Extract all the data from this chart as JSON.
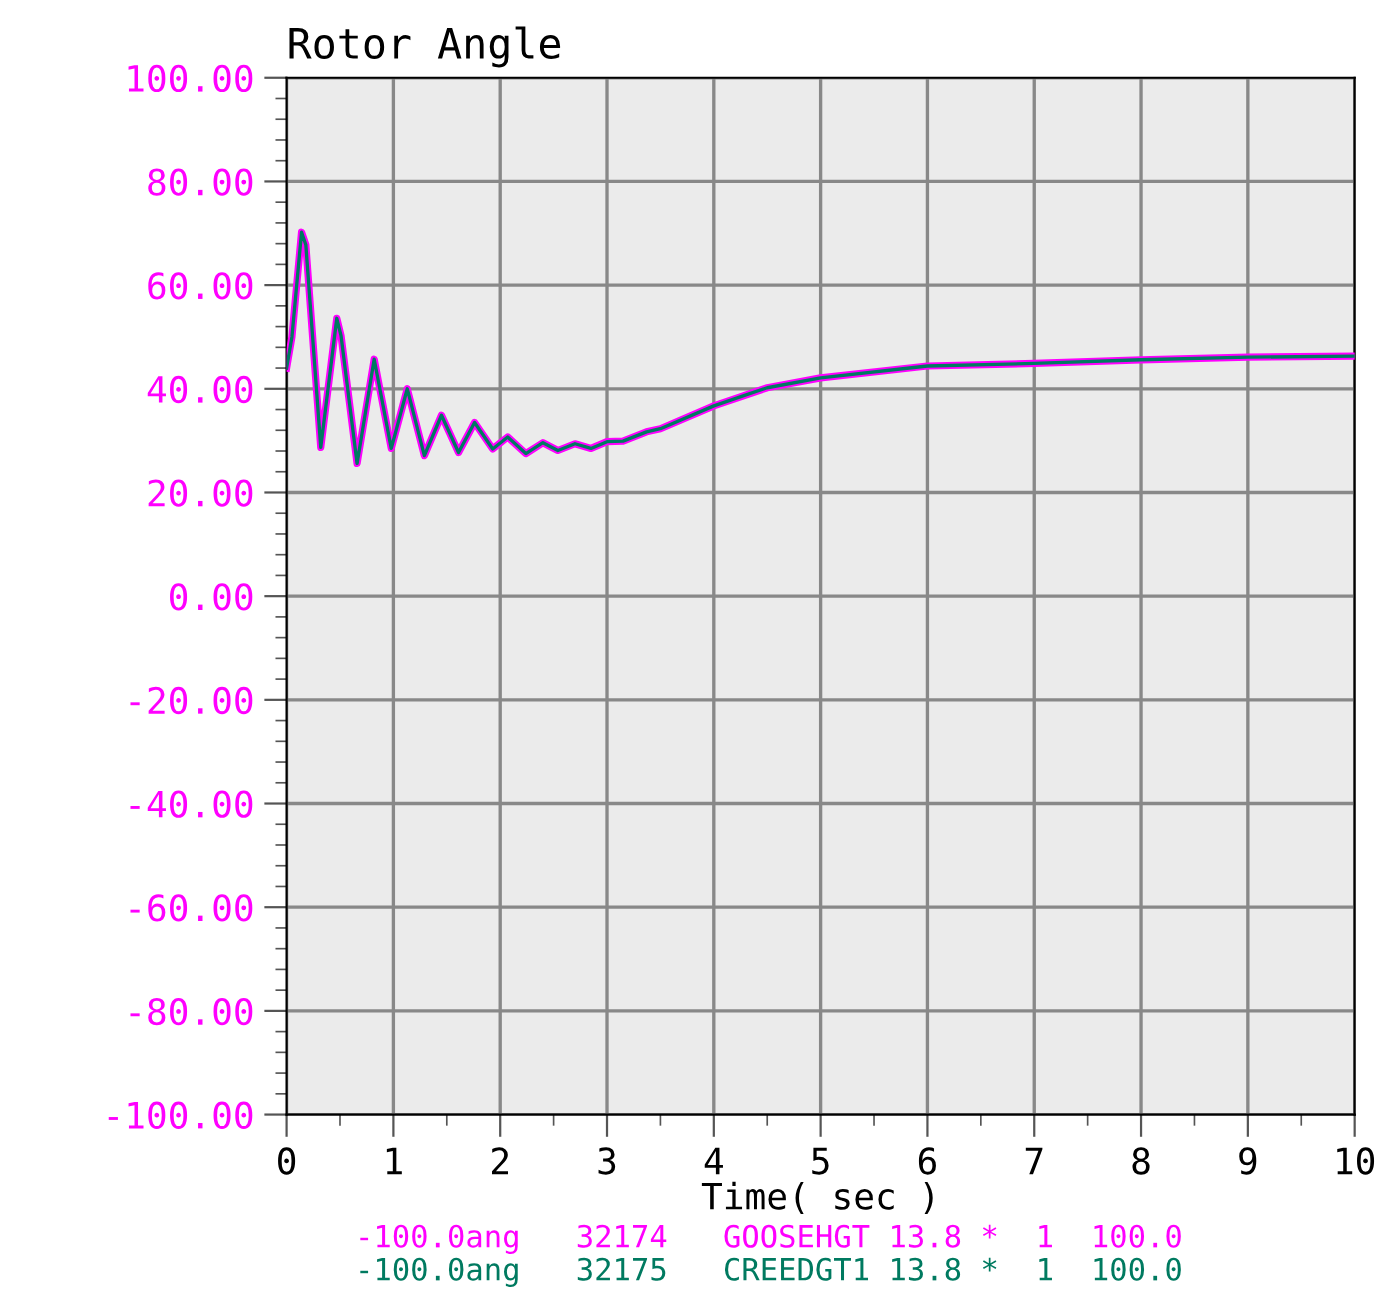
{
  "chart_data": {
    "type": "line",
    "title": "Rotor Angle",
    "xlabel": "Time( sec )",
    "xlim": [
      0,
      10
    ],
    "xticks": [
      0,
      1,
      2,
      3,
      4,
      5,
      6,
      7,
      8,
      9,
      10
    ],
    "ylim": [
      -100,
      100
    ],
    "yticks": [
      {
        "value": 100,
        "label": "100.00"
      },
      {
        "value": 80,
        "label": "80.00"
      },
      {
        "value": 60,
        "label": "60.00"
      },
      {
        "value": 40,
        "label": "40.00"
      },
      {
        "value": 20,
        "label": "20.00"
      },
      {
        "value": 0,
        "label": "0.00"
      },
      {
        "value": -20,
        "label": "-20.00"
      },
      {
        "value": -40,
        "label": "-40.00"
      },
      {
        "value": -60,
        "label": "-60.00"
      },
      {
        "value": -80,
        "label": "-80.00"
      },
      {
        "value": -100,
        "label": "-100.00"
      }
    ],
    "grid": true,
    "legend": "bottom",
    "x": [
      0,
      0.05,
      0.14,
      0.18,
      0.32,
      0.47,
      0.51,
      0.66,
      0.82,
      0.98,
      1.13,
      1.29,
      1.45,
      1.61,
      1.76,
      1.93,
      2.07,
      2.24,
      2.4,
      2.54,
      2.7,
      2.85,
      3.0,
      3.15,
      3.37,
      3.5,
      4.0,
      4.5,
      5.0,
      6.0,
      7.0,
      8.0,
      9.0,
      10.0
    ],
    "series": [
      {
        "name": "-100.0ang   32174   GOOSEHGT 13.8 *  1  100.0",
        "color": "#ff00ff",
        "values": [
          44,
          50,
          70.2,
          67.8,
          28.7,
          53.6,
          50.2,
          25.6,
          45.7,
          28.5,
          40,
          27.1,
          34.9,
          27.7,
          33.5,
          28.4,
          30.7,
          27.5,
          29.6,
          28.1,
          29.4,
          28.5,
          29.8,
          29.9,
          31.7,
          32.3,
          36.7,
          40.2,
          42.1,
          44.4,
          44.9,
          45.6,
          46.1,
          46.3
        ]
      },
      {
        "name": "-100.0ang   32175   CREEDGT1 13.8 *  1  100.0",
        "color": "#007a60",
        "values": [
          44,
          50,
          70.2,
          67.8,
          28.7,
          53.6,
          50.2,
          25.6,
          45.7,
          28.5,
          40,
          27.1,
          34.9,
          27.7,
          33.5,
          28.4,
          30.7,
          27.5,
          29.6,
          28.1,
          29.4,
          28.5,
          29.8,
          29.9,
          31.7,
          32.3,
          36.7,
          40.2,
          42.1,
          44.4,
          44.9,
          45.6,
          46.1,
          46.3
        ]
      }
    ]
  }
}
